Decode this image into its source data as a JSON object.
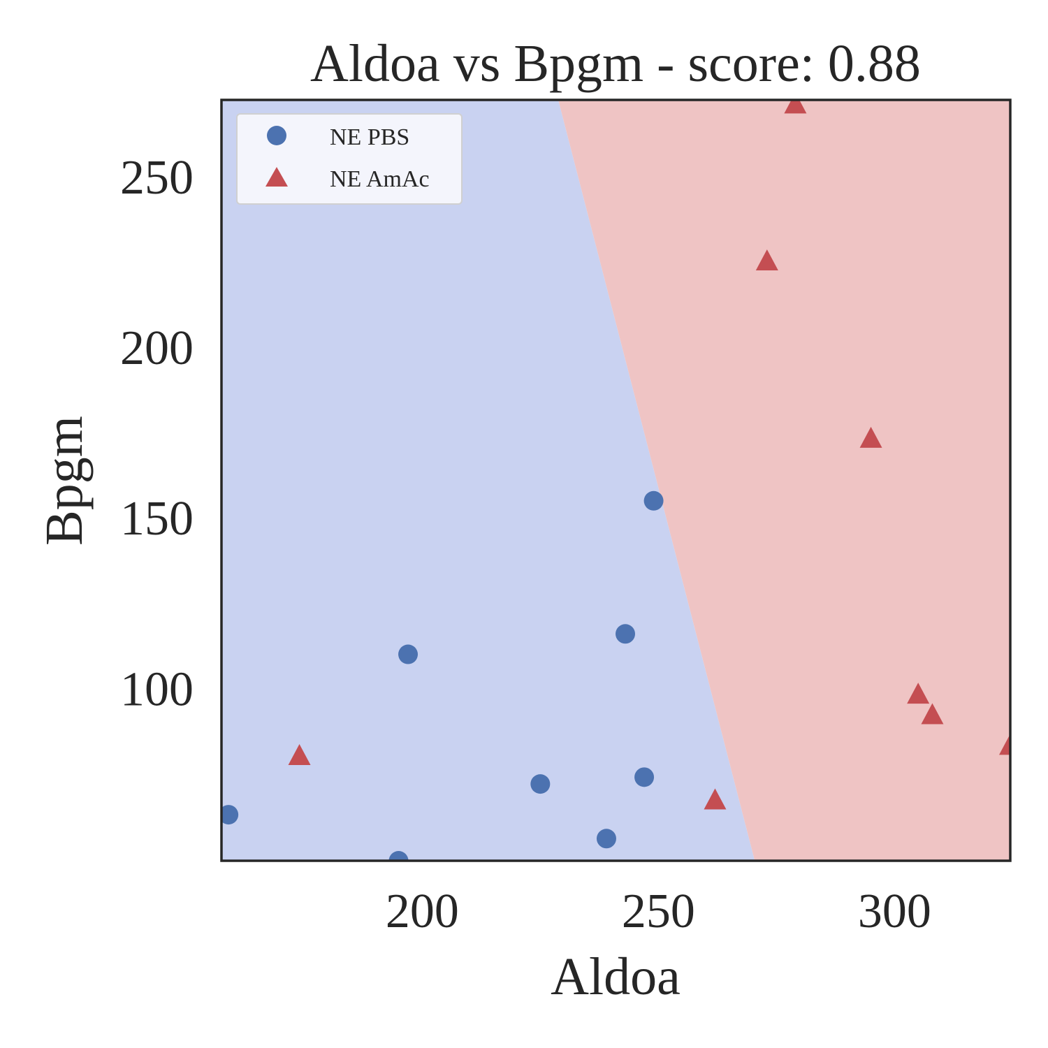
{
  "chart_data": {
    "type": "scatter",
    "title": "Aldoa vs Bpgm - score: 0.88",
    "xlabel": "Aldoa",
    "ylabel": "Bpgm",
    "xlim": [
      157.5,
      324.5
    ],
    "ylim": [
      49.5,
      272.5
    ],
    "x_ticks": [
      200,
      250,
      300
    ],
    "y_ticks": [
      100,
      150,
      200,
      250
    ],
    "grid": false,
    "legend_position": "top-left",
    "decision_boundary": {
      "point_a": [
        228.8,
        272.5
      ],
      "point_b": [
        270.4,
        49.5
      ],
      "left_class": "NE PBS",
      "right_class": "NE AmAc"
    },
    "series": [
      {
        "name": "NE PBS",
        "marker": "circle",
        "color": "#4c72b0",
        "region_color": "#c9d2f1",
        "points": [
          [
            159,
            63
          ],
          [
            195,
            49.5
          ],
          [
            197,
            110
          ],
          [
            225,
            72
          ],
          [
            239,
            56
          ],
          [
            243,
            116
          ],
          [
            247,
            74
          ],
          [
            249,
            155
          ]
        ]
      },
      {
        "name": "NE AmAc",
        "marker": "triangle",
        "color": "#c44e52",
        "region_color": "#efc4c4",
        "points": [
          [
            174,
            80
          ],
          [
            262,
            67
          ],
          [
            273,
            225
          ],
          [
            279,
            271
          ],
          [
            295,
            173
          ],
          [
            305,
            98
          ],
          [
            308,
            92
          ],
          [
            324.5,
            83
          ]
        ]
      }
    ]
  }
}
